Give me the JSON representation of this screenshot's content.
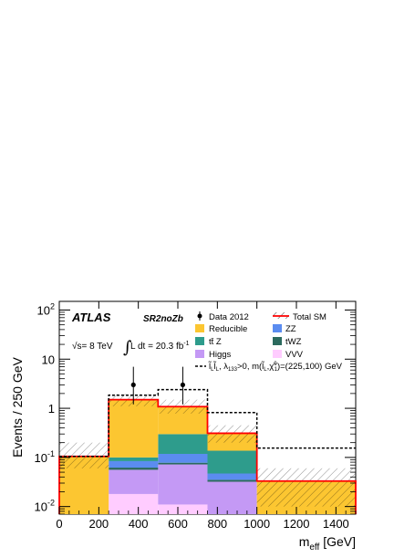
{
  "chart_data": {
    "type": "bar",
    "subtype": "stacked-histogram",
    "title": "",
    "xlabel": "m_eff [GeV]",
    "xlabel_main": "m",
    "xlabel_sub": "eff",
    "xlabel_unit": " [GeV]",
    "ylabel": "Events / 250 GeV",
    "yscale": "log",
    "xlim": [
      0,
      1500
    ],
    "ylim": [
      0.007,
      150
    ],
    "xticks": [
      0,
      200,
      400,
      600,
      800,
      1000,
      1200,
      1400
    ],
    "yticks": [
      {
        "value": 0.01,
        "base": "10",
        "exp": "-2"
      },
      {
        "value": 0.1,
        "base": "10",
        "exp": "-1"
      },
      {
        "value": 1,
        "base": "1",
        "exp": ""
      },
      {
        "value": 10,
        "base": "10",
        "exp": ""
      },
      {
        "value": 100,
        "base": "10",
        "exp": "2"
      }
    ],
    "bins": [
      0,
      250,
      500,
      750,
      1000,
      1500
    ],
    "stack_series": [
      {
        "name": "VVV",
        "color": "#ffccff",
        "values": [
          0.0,
          0.018,
          0.011,
          0.001,
          0.0
        ]
      },
      {
        "name": "Higgs",
        "color": "#c499f5",
        "values": [
          0.0,
          0.038,
          0.061,
          0.031,
          0.0
        ]
      },
      {
        "name": "tWZ",
        "color": "#2c6a5e",
        "values": [
          0.0,
          0.006,
          0.006,
          0.003,
          0.0
        ]
      },
      {
        "name": "ZZ",
        "color": "#5b8cf0",
        "values": [
          0.0,
          0.022,
          0.04,
          0.012,
          0.0
        ]
      },
      {
        "name": "ttZ",
        "color": "#2e9c8c",
        "values": [
          0.0,
          0.016,
          0.18,
          0.09,
          0.0
        ]
      },
      {
        "name": "Reducible",
        "color": "#fcc631",
        "values": [
          0.105,
          1.4,
          0.78,
          0.17,
          0.032
        ]
      }
    ],
    "total_sm": {
      "name": "Total SM",
      "color": "#ff0000",
      "values": [
        0.105,
        1.5,
        1.08,
        0.31,
        0.033
      ],
      "uncertainty_low": [
        0.06,
        1.1,
        0.78,
        0.2,
        0.01
      ],
      "uncertainty_high": [
        0.2,
        1.95,
        1.5,
        0.45,
        0.06
      ]
    },
    "signal": {
      "name": "signal",
      "style": "dashed",
      "color": "#000000",
      "values": [
        0.105,
        1.85,
        2.4,
        0.82,
        0.155
      ]
    },
    "data": {
      "name": "Data 2012",
      "x": [
        375,
        625
      ],
      "y": [
        3,
        3
      ],
      "err_low": [
        1.8,
        1.8
      ],
      "err_high": [
        4.0,
        4.0
      ]
    },
    "legend_placement": "top-right",
    "grid": false
  },
  "annotations": {
    "atlas": "ATLAS",
    "region": "SR2noZb",
    "sqrt_s": "√s= 8 TeV",
    "lumi_main": "L dt = 20.3 fb",
    "lumi_sup": "-1",
    "integral": "∫"
  },
  "legend": {
    "data": "Data 2012",
    "total_sm": "Total SM",
    "reducible": "Reducible",
    "zz": "ZZ",
    "ttz": "tt̄ Z",
    "twz": "tWZ",
    "higgs": "Higgs",
    "vvv": "VVV",
    "signal_a": "l̃",
    "signal_b": "L",
    "signal_c": "l̃",
    "signal_d": "L",
    "signal_e": ", λ",
    "signal_f": "133",
    "signal_g": ">0, m(",
    "signal_h": "l̃",
    "signal_i": "L",
    "signal_j": ",χ̃",
    "signal_k": "0",
    "signal_l": "1",
    "signal_m": ")=(225,100) GeV"
  }
}
